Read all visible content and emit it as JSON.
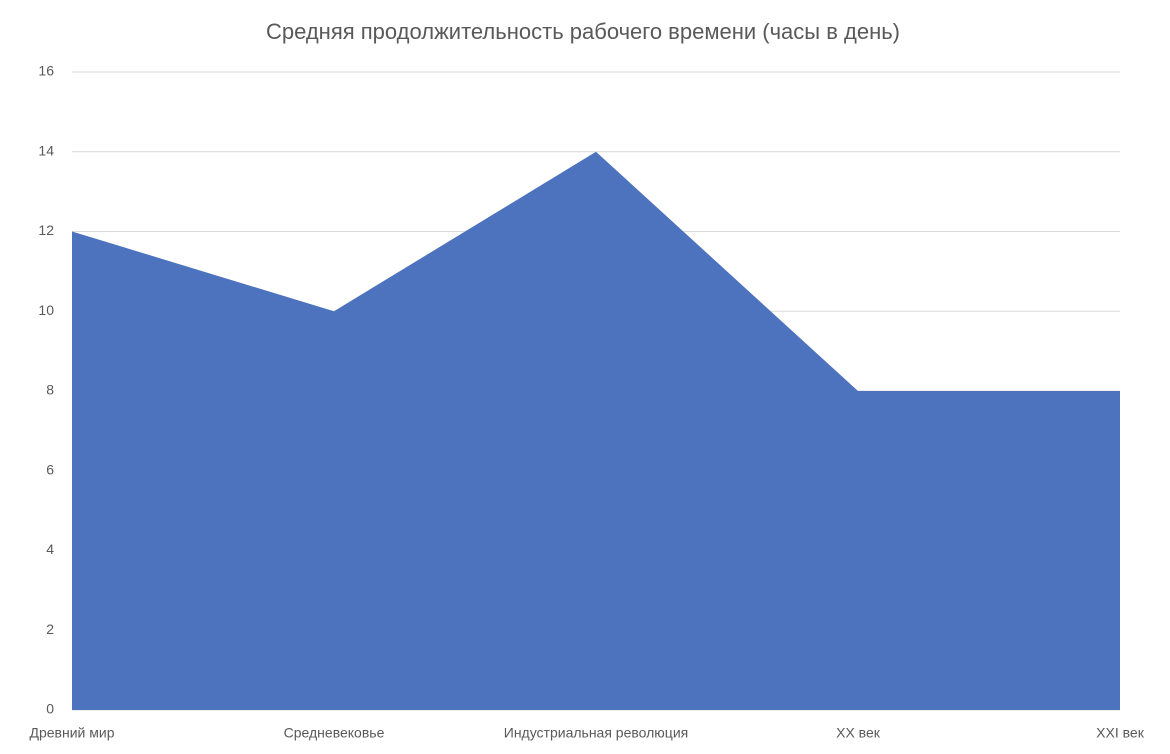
{
  "chart_data": {
    "type": "area",
    "title": "Средняя продолжительность рабочего времени (часы в день)",
    "categories": [
      "Древний мир",
      "Средневековье",
      "Индустриальная революция",
      "XX век",
      "XXI век"
    ],
    "values": [
      12,
      10,
      14,
      8,
      8
    ],
    "color": "#4e73be",
    "ylim": [
      0,
      16
    ],
    "yticks": [
      0,
      2,
      4,
      6,
      8,
      10,
      12,
      14,
      16
    ],
    "grid": true
  }
}
